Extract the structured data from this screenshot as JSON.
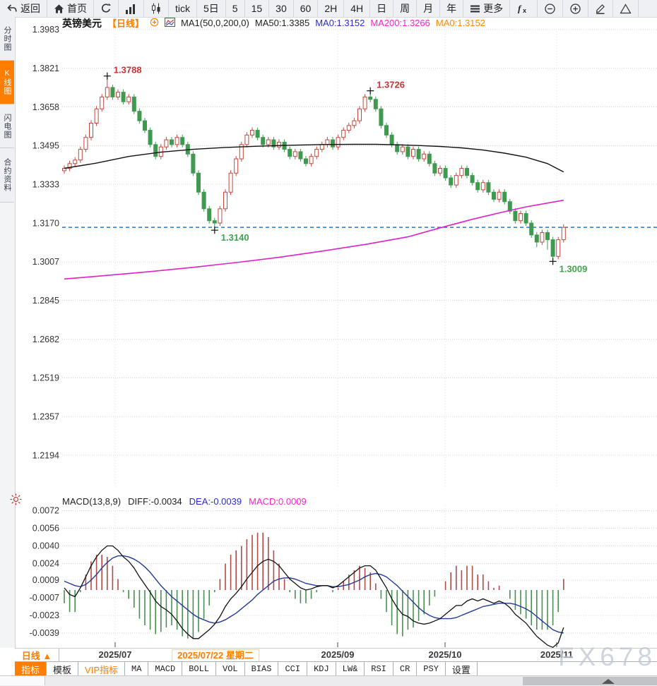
{
  "topbar": {
    "items": [
      {
        "name": "back-button",
        "icon": "back",
        "label": "返回"
      },
      {
        "name": "home-button",
        "icon": "home",
        "label": "首页"
      },
      {
        "name": "refresh-button",
        "icon": "refresh",
        "label": ""
      },
      {
        "name": "trend-chart-button",
        "icon": "barchart",
        "label": ""
      },
      {
        "name": "candle-chart-button",
        "icon": "candles",
        "label": ""
      },
      {
        "name": "period-tick-button",
        "icon": "",
        "label": "tick"
      },
      {
        "name": "period-5d-button",
        "icon": "",
        "label": "5日"
      },
      {
        "name": "period-5-button",
        "icon": "",
        "label": "5"
      },
      {
        "name": "period-15-button",
        "icon": "",
        "label": "15"
      },
      {
        "name": "period-30-button",
        "icon": "",
        "label": "30"
      },
      {
        "name": "period-60-button",
        "icon": "",
        "label": "60"
      },
      {
        "name": "period-2h-button",
        "icon": "",
        "label": "2H"
      },
      {
        "name": "period-4h-button",
        "icon": "",
        "label": "4H"
      },
      {
        "name": "period-day-button",
        "icon": "",
        "label": "日"
      },
      {
        "name": "period-week-button",
        "icon": "",
        "label": "周"
      },
      {
        "name": "period-month-button",
        "icon": "",
        "label": "月"
      },
      {
        "name": "period-year-button",
        "icon": "",
        "label": "年"
      },
      {
        "name": "more-button",
        "icon": "menu",
        "label": "更多"
      },
      {
        "name": "indicator-fx-button",
        "icon": "fx",
        "label": ""
      },
      {
        "name": "zoom-out-button",
        "icon": "zoomout",
        "label": ""
      },
      {
        "name": "zoom-in-button",
        "icon": "zoomin",
        "label": ""
      },
      {
        "name": "draw-button",
        "icon": "pencil",
        "label": ""
      },
      {
        "name": "shapes-button",
        "icon": "triangle",
        "label": ""
      }
    ]
  },
  "sidebar": {
    "tabs": [
      {
        "label": "分时图",
        "active": false
      },
      {
        "label": "K线图",
        "active": true
      },
      {
        "label": "闪电图",
        "active": false
      },
      {
        "label": "合约资料",
        "active": false
      }
    ]
  },
  "chart_header": {
    "symbol": "英镑美元",
    "period": "【日线】",
    "ma_def": "MA1(50,0,200,0)",
    "ma50": "MA50:1.3385",
    "ma0_blue": "MA0:1.3152",
    "ma200": "MA200:1.3266",
    "ma0_orange": "MA0:1.3152"
  },
  "macd_header": {
    "title": "MACD(13,8,9)",
    "diff": "DIFF:-0.0034",
    "dea": "DEA:-0.0039",
    "macd": "MACD:0.0009"
  },
  "x_axis": {
    "period_button": "日线 ▲",
    "labels": [
      {
        "text": "2025/07",
        "x": 163,
        "highlight": false
      },
      {
        "text": "2025/07/22 星期二",
        "x": 305,
        "highlight": true
      },
      {
        "text": "2025/09",
        "x": 478,
        "highlight": false
      },
      {
        "text": "2025/10",
        "x": 630,
        "highlight": false
      },
      {
        "text": "2025/11",
        "x": 788,
        "highlight": false
      }
    ]
  },
  "bottom_toolbar": {
    "items": [
      {
        "label": "指标",
        "style": "active"
      },
      {
        "label": "模板",
        "style": ""
      },
      {
        "label": "VIP指标",
        "style": "vip"
      },
      {
        "label": "MA",
        "style": "mono"
      },
      {
        "label": "MACD",
        "style": "mono"
      },
      {
        "label": "BOLL",
        "style": "mono"
      },
      {
        "label": "VOL",
        "style": "mono"
      },
      {
        "label": "BIAS",
        "style": "mono"
      },
      {
        "label": "CCI",
        "style": "mono"
      },
      {
        "label": "KDJ",
        "style": "mono"
      },
      {
        "label": "LW&",
        "style": "mono"
      },
      {
        "label": "RSI",
        "style": "mono"
      },
      {
        "label": "CR",
        "style": "mono"
      },
      {
        "label": "PSY",
        "style": "mono"
      },
      {
        "label": "设置",
        "style": ""
      }
    ]
  },
  "watermark": {
    "text": "FX678"
  },
  "colors": {
    "accent_orange": "#ff7e00",
    "up_red": "#c8453b",
    "down_green": "#3f9a50",
    "ma50_line": "#111111",
    "ma200_line": "#e020c8",
    "last_price_dash": "#2478d0",
    "diff_line": "#111111",
    "dea_line": "#223a99",
    "hist_red": "#b5494a",
    "hist_green": "#4a8f55",
    "annotation_red": "#cc3333",
    "annotation_green": "#3fa34d",
    "axis_text": "#333333",
    "gridline": "#d6d6da"
  },
  "chart_data": {
    "type": "candlestick+macd",
    "title": "英镑美元 日线 (GBP/USD Daily)",
    "price_panel": {
      "y_axis_labels": [
        "1.3983",
        "1.3821",
        "1.3658",
        "1.3495",
        "1.3333",
        "1.3170",
        "1.3007",
        "1.2845",
        "1.2682",
        "1.2519",
        "1.2357",
        "1.2194"
      ],
      "ylim": [
        1.2194,
        1.3983
      ],
      "last_price": 1.3152,
      "candles": [
        [
          1.339,
          1.3412,
          1.3378,
          1.34
        ],
        [
          1.34,
          1.3432,
          1.3388,
          1.342
        ],
        [
          1.342,
          1.3447,
          1.3408,
          1.3435
        ],
        [
          1.3435,
          1.3492,
          1.3423,
          1.348
        ],
        [
          1.348,
          1.3542,
          1.3468,
          1.353
        ],
        [
          1.353,
          1.3602,
          1.3518,
          1.359
        ],
        [
          1.359,
          1.3662,
          1.3578,
          1.365
        ],
        [
          1.365,
          1.3712,
          1.3638,
          1.37
        ],
        [
          1.37,
          1.3788,
          1.3688,
          1.374
        ],
        [
          1.374,
          1.3752,
          1.3688,
          1.37
        ],
        [
          1.37,
          1.3732,
          1.3688,
          1.372
        ],
        [
          1.372,
          1.3732,
          1.3668,
          1.368
        ],
        [
          1.368,
          1.3712,
          1.3668,
          1.37
        ],
        [
          1.37,
          1.3712,
          1.3628,
          1.364
        ],
        [
          1.364,
          1.3652,
          1.3588,
          1.36
        ],
        [
          1.36,
          1.3612,
          1.3548,
          1.356
        ],
        [
          1.356,
          1.3572,
          1.3488,
          1.35
        ],
        [
          1.35,
          1.3512,
          1.3438,
          1.345
        ],
        [
          1.345,
          1.3502,
          1.3438,
          1.349
        ],
        [
          1.349,
          1.3532,
          1.3478,
          1.352
        ],
        [
          1.352,
          1.3532,
          1.3488,
          1.35
        ],
        [
          1.35,
          1.3542,
          1.3488,
          1.353
        ],
        [
          1.353,
          1.3542,
          1.3488,
          1.35
        ],
        [
          1.35,
          1.3512,
          1.3448,
          1.346
        ],
        [
          1.346,
          1.3472,
          1.3368,
          1.338
        ],
        [
          1.338,
          1.3392,
          1.3288,
          1.33
        ],
        [
          1.33,
          1.3312,
          1.3218,
          1.323
        ],
        [
          1.323,
          1.3242,
          1.3168,
          1.318
        ],
        [
          1.318,
          1.3192,
          1.314,
          1.317
        ],
        [
          1.317,
          1.3242,
          1.3158,
          1.323
        ],
        [
          1.323,
          1.3312,
          1.3218,
          1.33
        ],
        [
          1.33,
          1.3392,
          1.3288,
          1.338
        ],
        [
          1.338,
          1.3452,
          1.3368,
          1.344
        ],
        [
          1.344,
          1.3512,
          1.3428,
          1.35
        ],
        [
          1.35,
          1.3552,
          1.3488,
          1.354
        ],
        [
          1.354,
          1.3572,
          1.3528,
          1.356
        ],
        [
          1.356,
          1.3572,
          1.3518,
          1.353
        ],
        [
          1.353,
          1.3542,
          1.3488,
          1.35
        ],
        [
          1.35,
          1.3532,
          1.3488,
          1.352
        ],
        [
          1.352,
          1.3532,
          1.3478,
          1.349
        ],
        [
          1.349,
          1.3522,
          1.3478,
          1.351
        ],
        [
          1.351,
          1.3522,
          1.3468,
          1.348
        ],
        [
          1.348,
          1.3492,
          1.3438,
          1.345
        ],
        [
          1.345,
          1.3482,
          1.3438,
          1.347
        ],
        [
          1.347,
          1.3482,
          1.3428,
          1.344
        ],
        [
          1.344,
          1.3452,
          1.3408,
          1.342
        ],
        [
          1.342,
          1.3462,
          1.3408,
          1.345
        ],
        [
          1.345,
          1.3492,
          1.3438,
          1.348
        ],
        [
          1.348,
          1.3512,
          1.3468,
          1.35
        ],
        [
          1.35,
          1.3532,
          1.3488,
          1.352
        ],
        [
          1.352,
          1.3532,
          1.3478,
          1.349
        ],
        [
          1.349,
          1.3542,
          1.3478,
          1.353
        ],
        [
          1.353,
          1.3572,
          1.3518,
          1.356
        ],
        [
          1.356,
          1.3592,
          1.3548,
          1.358
        ],
        [
          1.358,
          1.3612,
          1.3568,
          1.36
        ],
        [
          1.36,
          1.3662,
          1.3588,
          1.365
        ],
        [
          1.365,
          1.3712,
          1.3638,
          1.37
        ],
        [
          1.37,
          1.3726,
          1.3678,
          1.369
        ],
        [
          1.369,
          1.3702,
          1.3638,
          1.365
        ],
        [
          1.365,
          1.3662,
          1.3568,
          1.358
        ],
        [
          1.358,
          1.3592,
          1.3528,
          1.354
        ],
        [
          1.354,
          1.3552,
          1.3488,
          1.35
        ],
        [
          1.35,
          1.3512,
          1.3458,
          1.347
        ],
        [
          1.347,
          1.3502,
          1.3458,
          1.349
        ],
        [
          1.349,
          1.3502,
          1.3438,
          1.345
        ],
        [
          1.345,
          1.3492,
          1.3438,
          1.348
        ],
        [
          1.348,
          1.3492,
          1.3428,
          1.344
        ],
        [
          1.344,
          1.3472,
          1.3428,
          1.346
        ],
        [
          1.346,
          1.3472,
          1.3408,
          1.342
        ],
        [
          1.342,
          1.3432,
          1.3368,
          1.338
        ],
        [
          1.338,
          1.3412,
          1.3368,
          1.34
        ],
        [
          1.34,
          1.3412,
          1.3348,
          1.336
        ],
        [
          1.336,
          1.3372,
          1.3318,
          1.333
        ],
        [
          1.333,
          1.3382,
          1.3318,
          1.337
        ],
        [
          1.337,
          1.3412,
          1.3358,
          1.34
        ],
        [
          1.34,
          1.3412,
          1.3358,
          1.337
        ],
        [
          1.337,
          1.3382,
          1.3328,
          1.334
        ],
        [
          1.334,
          1.3352,
          1.3298,
          1.331
        ],
        [
          1.331,
          1.3352,
          1.3298,
          1.334
        ],
        [
          1.334,
          1.3352,
          1.3288,
          1.33
        ],
        [
          1.33,
          1.3312,
          1.3258,
          1.327
        ],
        [
          1.327,
          1.3312,
          1.3258,
          1.33
        ],
        [
          1.33,
          1.3312,
          1.3248,
          1.326
        ],
        [
          1.326,
          1.3272,
          1.3208,
          1.322
        ],
        [
          1.322,
          1.3232,
          1.3168,
          1.318
        ],
        [
          1.318,
          1.3222,
          1.3168,
          1.321
        ],
        [
          1.321,
          1.3222,
          1.3158,
          1.317
        ],
        [
          1.317,
          1.3182,
          1.3108,
          1.312
        ],
        [
          1.312,
          1.3132,
          1.3068,
          1.309
        ],
        [
          1.309,
          1.3142,
          1.3078,
          1.313
        ],
        [
          1.313,
          1.3142,
          1.3058,
          1.31
        ],
        [
          1.31,
          1.3112,
          1.3009,
          1.303
        ],
        [
          1.303,
          1.3112,
          1.3018,
          1.31
        ],
        [
          1.31,
          1.3165,
          1.3088,
          1.3152
        ]
      ],
      "ma50_points": [
        [
          0,
          1.34
        ],
        [
          6,
          1.3422
        ],
        [
          12,
          1.345
        ],
        [
          18,
          1.3468
        ],
        [
          24,
          1.348
        ],
        [
          30,
          1.3488
        ],
        [
          36,
          1.3493
        ],
        [
          42,
          1.3497
        ],
        [
          48,
          1.35
        ],
        [
          54,
          1.3501
        ],
        [
          58,
          1.3501
        ],
        [
          62,
          1.3499
        ],
        [
          66,
          1.3496
        ],
        [
          70,
          1.3492
        ],
        [
          74,
          1.3486
        ],
        [
          78,
          1.3477
        ],
        [
          82,
          1.3464
        ],
        [
          86,
          1.3447
        ],
        [
          90,
          1.342
        ],
        [
          93,
          1.3385
        ]
      ],
      "ma200_points": [
        [
          0,
          1.2935
        ],
        [
          8,
          1.295
        ],
        [
          16,
          1.2966
        ],
        [
          24,
          1.2984
        ],
        [
          32,
          1.3004
        ],
        [
          40,
          1.3026
        ],
        [
          48,
          1.3052
        ],
        [
          56,
          1.308
        ],
        [
          64,
          1.3112
        ],
        [
          70,
          1.315
        ],
        [
          76,
          1.3186
        ],
        [
          82,
          1.3218
        ],
        [
          86,
          1.3238
        ],
        [
          90,
          1.3254
        ],
        [
          93,
          1.3266
        ]
      ],
      "annotations": [
        {
          "text": "1.3788",
          "candle": 8,
          "at": "high",
          "placement": "above",
          "color": "#cc3333"
        },
        {
          "text": "1.3726",
          "candle": 57,
          "at": "high",
          "placement": "above",
          "color": "#cc3333"
        },
        {
          "text": "1.3140",
          "candle": 28,
          "at": "low",
          "placement": "below",
          "color": "#3fa34d"
        },
        {
          "text": "1.3009",
          "candle": 91,
          "at": "low",
          "placement": "below",
          "color": "#3fa34d"
        }
      ]
    },
    "macd_panel": {
      "y_axis_labels": [
        "0.0072",
        "0.0056",
        "0.0040",
        "0.0024",
        "0.0009",
        "-0.0007",
        "-0.0023",
        "-0.0039"
      ],
      "diff": [
        0.0002,
        -0.0004,
        -0.0006,
        0.0002,
        0.0012,
        0.0022,
        0.003,
        0.0036,
        0.004,
        0.004,
        0.0036,
        0.003,
        0.0026,
        0.002,
        0.0012,
        0.0005,
        -0.0002,
        -0.001,
        -0.0015,
        -0.0018,
        -0.0022,
        -0.0028,
        -0.0035,
        -0.004,
        -0.0044,
        -0.0044,
        -0.004,
        -0.0036,
        -0.0031,
        -0.0024,
        -0.0015,
        -0.0008,
        -0.0003,
        0.0003,
        0.001,
        0.0016,
        0.0022,
        0.0026,
        0.0028,
        0.0026,
        0.0022,
        0.0016,
        0.001,
        0.0006,
        0.0002,
        0.0,
        0.0001,
        0.0003,
        0.0004,
        0.0004,
        0.0002,
        0.0004,
        0.0008,
        0.0012,
        0.0016,
        0.002,
        0.0022,
        0.0022,
        0.0018,
        0.001,
        0.0002,
        -0.0008,
        -0.0016,
        -0.0022,
        -0.0024,
        -0.0028,
        -0.003,
        -0.0031,
        -0.003,
        -0.0028,
        -0.0026,
        -0.0022,
        -0.0018,
        -0.0014,
        -0.0014,
        -0.001,
        -0.0008,
        -0.001,
        -0.0008,
        -0.001,
        -0.0012,
        -0.001,
        -0.0012,
        -0.0016,
        -0.0022,
        -0.0026,
        -0.003,
        -0.0036,
        -0.0042,
        -0.0046,
        -0.005,
        -0.0052,
        -0.0048,
        -0.0034
      ],
      "dea": [
        0.0008,
        0.0006,
        0.0004,
        0.0003,
        0.0005,
        0.0009,
        0.0014,
        0.002,
        0.0025,
        0.0029,
        0.0031,
        0.0031,
        0.003,
        0.0028,
        0.0025,
        0.0021,
        0.0016,
        0.001,
        0.0004,
        -0.0001,
        -0.0006,
        -0.001,
        -0.0014,
        -0.0018,
        -0.0022,
        -0.0025,
        -0.0027,
        -0.0029,
        -0.003,
        -0.0029,
        -0.0027,
        -0.0024,
        -0.0021,
        -0.0017,
        -0.0013,
        -0.0009,
        -0.0004,
        0.0,
        0.0004,
        0.0008,
        0.001,
        0.0011,
        0.0011,
        0.001,
        0.0008,
        0.0006,
        0.0005,
        0.0004,
        0.0004,
        0.0004,
        0.0003,
        0.0003,
        0.0004,
        0.0005,
        0.0007,
        0.0009,
        0.0012,
        0.0014,
        0.0015,
        0.0014,
        0.0012,
        0.0008,
        0.0004,
        -0.0001,
        -0.0006,
        -0.0011,
        -0.0016,
        -0.002,
        -0.0023,
        -0.0025,
        -0.0026,
        -0.0026,
        -0.0026,
        -0.0025,
        -0.0023,
        -0.0021,
        -0.0019,
        -0.0017,
        -0.0015,
        -0.0014,
        -0.0013,
        -0.0012,
        -0.0012,
        -0.0012,
        -0.0013,
        -0.0015,
        -0.0017,
        -0.002,
        -0.0024,
        -0.0028,
        -0.0032,
        -0.0036,
        -0.0038,
        -0.0039
      ],
      "histogram_rule": "2*(diff-dea)"
    }
  }
}
